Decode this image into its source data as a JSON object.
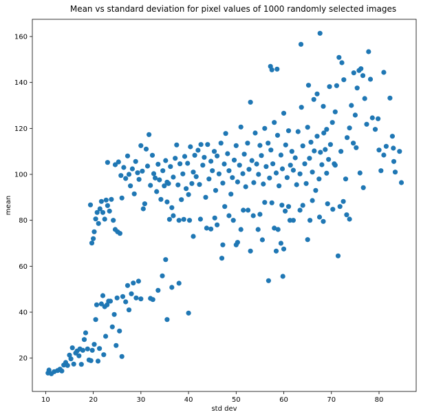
{
  "chart_data": {
    "type": "scatter",
    "title": "Mean vs standard deviation for pixel values of 1000 randomly selected images",
    "xlabel": "std dev",
    "ylabel": "mean",
    "xlim": [
      7.2,
      87.8
    ],
    "ylim": [
      5.5,
      167.5
    ],
    "xticks": [
      10,
      20,
      30,
      40,
      50,
      60,
      70,
      80
    ],
    "yticks": [
      20,
      40,
      60,
      80,
      100,
      120,
      140,
      160
    ],
    "grid": false,
    "marker_color": "#1f77b4",
    "points": [
      [
        10.5,
        13.5
      ],
      [
        10.7,
        14.8
      ],
      [
        11.2,
        13.2
      ],
      [
        11.8,
        14.1
      ],
      [
        12.5,
        14.6
      ],
      [
        13.0,
        15.2
      ],
      [
        13.4,
        14.4
      ],
      [
        13.8,
        17.0
      ],
      [
        14.2,
        18.1
      ],
      [
        14.6,
        16.8
      ],
      [
        15.0,
        21.3
      ],
      [
        15.3,
        19.7
      ],
      [
        15.6,
        24.5
      ],
      [
        15.9,
        17.4
      ],
      [
        16.3,
        22.2
      ],
      [
        16.6,
        23.1
      ],
      [
        17.0,
        21.0
      ],
      [
        17.2,
        24.0
      ],
      [
        17.5,
        17.3
      ],
      [
        17.8,
        23.4
      ],
      [
        18.1,
        28.1
      ],
      [
        18.4,
        31.0
      ],
      [
        18.8,
        24.0
      ],
      [
        19.1,
        19.2
      ],
      [
        19.5,
        18.9
      ],
      [
        19.8,
        23.4
      ],
      [
        20.2,
        26.0
      ],
      [
        20.5,
        36.8
      ],
      [
        20.7,
        43.2
      ],
      [
        21.0,
        18.7
      ],
      [
        21.3,
        24.2
      ],
      [
        21.7,
        43.6
      ],
      [
        22.0,
        47.2
      ],
      [
        22.2,
        21.5
      ],
      [
        22.4,
        42.4
      ],
      [
        22.6,
        29.5
      ],
      [
        22.9,
        43.2
      ],
      [
        23.2,
        44.8
      ],
      [
        23.6,
        44.8
      ],
      [
        24.0,
        33.6
      ],
      [
        24.4,
        39.0
      ],
      [
        24.8,
        25.5
      ],
      [
        25.0,
        46.2
      ],
      [
        25.5,
        31.8
      ],
      [
        26.0,
        20.7
      ],
      [
        26.2,
        46.8
      ],
      [
        26.8,
        44.5
      ],
      [
        27.2,
        51.6
      ],
      [
        27.5,
        41.0
      ],
      [
        28.0,
        48.0
      ],
      [
        28.4,
        52.7
      ],
      [
        29.0,
        46.2
      ],
      [
        29.5,
        53.5
      ],
      [
        30.0,
        45.8
      ],
      [
        32.0,
        46.0
      ],
      [
        32.5,
        45.5
      ],
      [
        33.6,
        49.5
      ],
      [
        34.5,
        55.8
      ],
      [
        35.2,
        62.9
      ],
      [
        35.5,
        36.8
      ],
      [
        36.5,
        50.8
      ],
      [
        38.0,
        52.6
      ],
      [
        40.0,
        39.6
      ],
      [
        19.4,
        86.7
      ],
      [
        19.7,
        70.1
      ],
      [
        20.0,
        72.0
      ],
      [
        20.2,
        75.0
      ],
      [
        20.5,
        80.6
      ],
      [
        20.8,
        83.4
      ],
      [
        21.1,
        78.6
      ],
      [
        21.4,
        85.0
      ],
      [
        21.7,
        88.2
      ],
      [
        22.0,
        83.4
      ],
      [
        22.4,
        80.5
      ],
      [
        22.7,
        88.8
      ],
      [
        23.0,
        86.4
      ],
      [
        23.4,
        84.0
      ],
      [
        23.8,
        89.1
      ],
      [
        24.2,
        80.0
      ],
      [
        24.6,
        76.0
      ],
      [
        25.1,
        75.0
      ],
      [
        25.6,
        74.3
      ],
      [
        26.0,
        89.7
      ],
      [
        23.0,
        105.2
      ],
      [
        24.6,
        104.2
      ],
      [
        25.3,
        105.4
      ],
      [
        25.8,
        99.5
      ],
      [
        26.4,
        103.0
      ],
      [
        26.8,
        98.2
      ],
      [
        27.2,
        108.0
      ],
      [
        27.5,
        100.0
      ],
      [
        27.8,
        95.0
      ],
      [
        28.2,
        102.4
      ],
      [
        28.6,
        91.5
      ],
      [
        28.9,
        105.6
      ],
      [
        29.3,
        100.7
      ],
      [
        29.6,
        97.8
      ],
      [
        30.0,
        112.5
      ],
      [
        30.3,
        101.4
      ],
      [
        30.5,
        85.0
      ],
      [
        30.8,
        87.2
      ],
      [
        31.1,
        111.0
      ],
      [
        31.4,
        103.6
      ],
      [
        31.7,
        117.3
      ],
      [
        32.0,
        95.2
      ],
      [
        32.4,
        108.3
      ],
      [
        32.7,
        100.3
      ],
      [
        33.0,
        98.4
      ],
      [
        33.3,
        92.5
      ],
      [
        33.6,
        104.4
      ],
      [
        33.9,
        97.6
      ],
      [
        34.2,
        89.1
      ],
      [
        34.6,
        101.6
      ],
      [
        34.9,
        95.0
      ],
      [
        35.2,
        106.0
      ],
      [
        35.5,
        88.0
      ],
      [
        35.8,
        96.0
      ],
      [
        36.2,
        103.4
      ],
      [
        36.5,
        85.5
      ],
      [
        36.8,
        98.8
      ],
      [
        37.2,
        107.0
      ],
      [
        37.5,
        112.8
      ],
      [
        37.8,
        95.4
      ],
      [
        38.2,
        104.6
      ],
      [
        38.5,
        89.0
      ],
      [
        38.8,
        100.2
      ],
      [
        39.2,
        107.8
      ],
      [
        39.5,
        93.8
      ],
      [
        39.8,
        104.8
      ],
      [
        40.0,
        91.2
      ],
      [
        40.4,
        112.0
      ],
      [
        40.7,
        96.0
      ],
      [
        41.0,
        101.0
      ],
      [
        41.3,
        108.3
      ],
      [
        41.6,
        99.0
      ],
      [
        42.0,
        110.5
      ],
      [
        42.3,
        95.6
      ],
      [
        42.6,
        113.0
      ],
      [
        43.0,
        104.0
      ],
      [
        43.3,
        107.4
      ],
      [
        43.6,
        90.0
      ],
      [
        44.0,
        113.0
      ],
      [
        44.3,
        98.0
      ],
      [
        44.7,
        105.7
      ],
      [
        45.0,
        101.6
      ],
      [
        45.4,
        110.0
      ],
      [
        45.7,
        93.0
      ],
      [
        46.0,
        108.0
      ],
      [
        46.4,
        100.2
      ],
      [
        46.8,
        113.6
      ],
      [
        47.2,
        96.2
      ],
      [
        47.5,
        104.5
      ],
      [
        47.8,
        117.8
      ],
      [
        48.2,
        109.0
      ],
      [
        48.5,
        101.6
      ],
      [
        48.9,
        91.4
      ],
      [
        49.2,
        98.6
      ],
      [
        49.6,
        106.2
      ],
      [
        50.0,
        112.5
      ],
      [
        50.3,
        96.7
      ],
      [
        50.7,
        104.0
      ],
      [
        51.0,
        120.6
      ],
      [
        51.4,
        100.3
      ],
      [
        51.7,
        108.8
      ],
      [
        52.0,
        94.6
      ],
      [
        52.4,
        113.6
      ],
      [
        52.7,
        102.2
      ],
      [
        53.0,
        131.4
      ],
      [
        53.3,
        106.0
      ],
      [
        53.7,
        96.4
      ],
      [
        54.0,
        118.0
      ],
      [
        54.3,
        104.5
      ],
      [
        54.7,
        100.0
      ],
      [
        55.0,
        112.6
      ],
      [
        55.3,
        108.2
      ],
      [
        55.7,
        95.8
      ],
      [
        56.0,
        120.0
      ],
      [
        56.3,
        103.4
      ],
      [
        56.7,
        113.6
      ],
      [
        57.0,
        98.4
      ],
      [
        57.3,
        110.6
      ],
      [
        57.7,
        104.6
      ],
      [
        58.0,
        122.6
      ],
      [
        58.4,
        100.6
      ],
      [
        58.7,
        117.0
      ],
      [
        59.0,
        95.0
      ],
      [
        59.4,
        108.4
      ],
      [
        59.7,
        102.4
      ],
      [
        60.0,
        126.6
      ],
      [
        60.4,
        112.8
      ],
      [
        60.7,
        98.6
      ],
      [
        61.0,
        119.0
      ],
      [
        61.4,
        104.0
      ],
      [
        61.7,
        110.0
      ],
      [
        62.0,
        101.8
      ],
      [
        62.4,
        107.2
      ],
      [
        62.7,
        95.5
      ],
      [
        63.0,
        118.6
      ],
      [
        63.4,
        100.2
      ],
      [
        63.7,
        129.2
      ],
      [
        64.0,
        112.4
      ],
      [
        64.4,
        104.6
      ],
      [
        64.7,
        96.0
      ],
      [
        65.0,
        120.5
      ],
      [
        65.4,
        107.0
      ],
      [
        65.7,
        114.0
      ],
      [
        66.0,
        101.0
      ],
      [
        66.4,
        110.2
      ],
      [
        66.7,
        93.0
      ],
      [
        67.0,
        116.6
      ],
      [
        67.4,
        98.0
      ],
      [
        67.7,
        109.6
      ],
      [
        68.0,
        104.2
      ],
      [
        68.4,
        118.0
      ],
      [
        68.7,
        110.8
      ],
      [
        69.0,
        100.5
      ],
      [
        69.4,
        106.5
      ],
      [
        35.5,
        96.6
      ],
      [
        36.0,
        80.4
      ],
      [
        36.8,
        82.0
      ],
      [
        38.0,
        80.0
      ],
      [
        39.0,
        80.4
      ],
      [
        40.2,
        80.0
      ],
      [
        41.0,
        73.0
      ],
      [
        42.5,
        80.5
      ],
      [
        43.8,
        76.6
      ],
      [
        44.7,
        76.2
      ],
      [
        45.5,
        81.0
      ],
      [
        46.0,
        78.0
      ],
      [
        47.0,
        63.5
      ],
      [
        47.2,
        69.3
      ],
      [
        47.6,
        86.0
      ],
      [
        48.5,
        82.0
      ],
      [
        49.4,
        80.0
      ],
      [
        50.0,
        69.3
      ],
      [
        50.3,
        70.4
      ],
      [
        51.0,
        76.0
      ],
      [
        51.5,
        84.4
      ],
      [
        52.5,
        84.4
      ],
      [
        53.0,
        66.6
      ],
      [
        53.6,
        82.0
      ],
      [
        54.6,
        76.0
      ],
      [
        55.0,
        82.6
      ],
      [
        55.5,
        71.5
      ],
      [
        56.0,
        87.8
      ],
      [
        56.8,
        53.7
      ],
      [
        57.5,
        87.6
      ],
      [
        58.0,
        76.6
      ],
      [
        58.4,
        66.6
      ],
      [
        58.8,
        76.0
      ],
      [
        59.4,
        70.0
      ],
      [
        59.6,
        86.6
      ],
      [
        59.8,
        55.6
      ],
      [
        60.0,
        67.5
      ],
      [
        60.3,
        84.0
      ],
      [
        61.0,
        86.0
      ],
      [
        61.3,
        80.0
      ],
      [
        62.0,
        80.0
      ],
      [
        63.4,
        84.4
      ],
      [
        64.0,
        86.5
      ],
      [
        65.0,
        71.6
      ],
      [
        65.5,
        80.0
      ],
      [
        66.0,
        88.6
      ],
      [
        67.5,
        81.4
      ],
      [
        68.3,
        79.5
      ],
      [
        69.2,
        87.2
      ],
      [
        70.3,
        84.8
      ],
      [
        71.4,
        64.5
      ],
      [
        71.8,
        86.0
      ],
      [
        72.5,
        88.2
      ],
      [
        73.2,
        82.4
      ],
      [
        73.8,
        80.5
      ],
      [
        57.2,
        147.0
      ],
      [
        57.5,
        145.5
      ],
      [
        58.6,
        145.8
      ],
      [
        63.6,
        156.6
      ],
      [
        65.2,
        138.8
      ],
      [
        66.3,
        132.6
      ],
      [
        67.0,
        135.0
      ],
      [
        67.6,
        161.4
      ],
      [
        68.3,
        129.6
      ],
      [
        69.0,
        119.6
      ],
      [
        69.6,
        138.2
      ],
      [
        70.2,
        122.6
      ],
      [
        70.8,
        127.2
      ],
      [
        71.1,
        138.6
      ],
      [
        71.6,
        150.9
      ],
      [
        72.2,
        148.6
      ],
      [
        72.6,
        141.2
      ],
      [
        73.3,
        116.0
      ],
      [
        73.8,
        120.2
      ],
      [
        74.2,
        130.0
      ],
      [
        74.7,
        144.2
      ],
      [
        75.0,
        125.8
      ],
      [
        75.4,
        137.6
      ],
      [
        75.8,
        145.2
      ],
      [
        76.2,
        146.0
      ],
      [
        76.6,
        143.0
      ],
      [
        77.0,
        133.0
      ],
      [
        77.4,
        121.8
      ],
      [
        77.8,
        153.4
      ],
      [
        78.2,
        141.4
      ],
      [
        78.6,
        124.6
      ],
      [
        79.2,
        119.6
      ],
      [
        79.8,
        124.2
      ],
      [
        80.0,
        110.6
      ],
      [
        80.4,
        101.6
      ],
      [
        81.0,
        144.4
      ],
      [
        81.0,
        108.4
      ],
      [
        81.5,
        112.2
      ],
      [
        82.3,
        133.2
      ],
      [
        82.8,
        116.6
      ],
      [
        83.0,
        111.4
      ],
      [
        83.1,
        105.6
      ],
      [
        83.4,
        101.0
      ],
      [
        84.3,
        110.0
      ],
      [
        84.7,
        96.4
      ],
      [
        76.0,
        100.6
      ],
      [
        76.7,
        94.2
      ],
      [
        75.2,
        111.6
      ],
      [
        74.6,
        113.6
      ],
      [
        73.0,
        98.0
      ],
      [
        72.0,
        110.0
      ],
      [
        70.6,
        104.6
      ],
      [
        69.8,
        113.0
      ],
      [
        70.8,
        104.0
      ]
    ]
  }
}
